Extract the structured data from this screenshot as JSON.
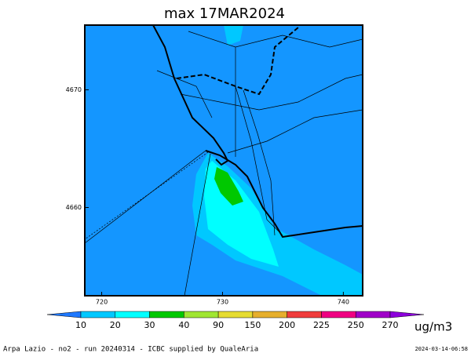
{
  "title": "max 17MAR2024",
  "map": {
    "xlim": [
      718.6,
      741.6
    ],
    "ylim": [
      4652.5,
      4675.5
    ],
    "xticks": [
      720,
      730,
      740
    ],
    "yticks": [
      4660,
      4670
    ]
  },
  "colorbar": {
    "levels": [
      10,
      20,
      30,
      40,
      90,
      150,
      200,
      225,
      250,
      270
    ],
    "colors": [
      "#1e78ff",
      "#00c8ff",
      "#00ffff",
      "#00c800",
      "#a0e632",
      "#e6dc32",
      "#e6af2d",
      "#f03c3c",
      "#f00082",
      "#a000c8",
      "#8c00dc"
    ],
    "unit": "ug/m3"
  },
  "footer": {
    "credit": "Arpa Lazio - no2 - run 20240314 - ICBC supplied by QualeAria",
    "timestamp": "2024-03-14-06:58"
  }
}
